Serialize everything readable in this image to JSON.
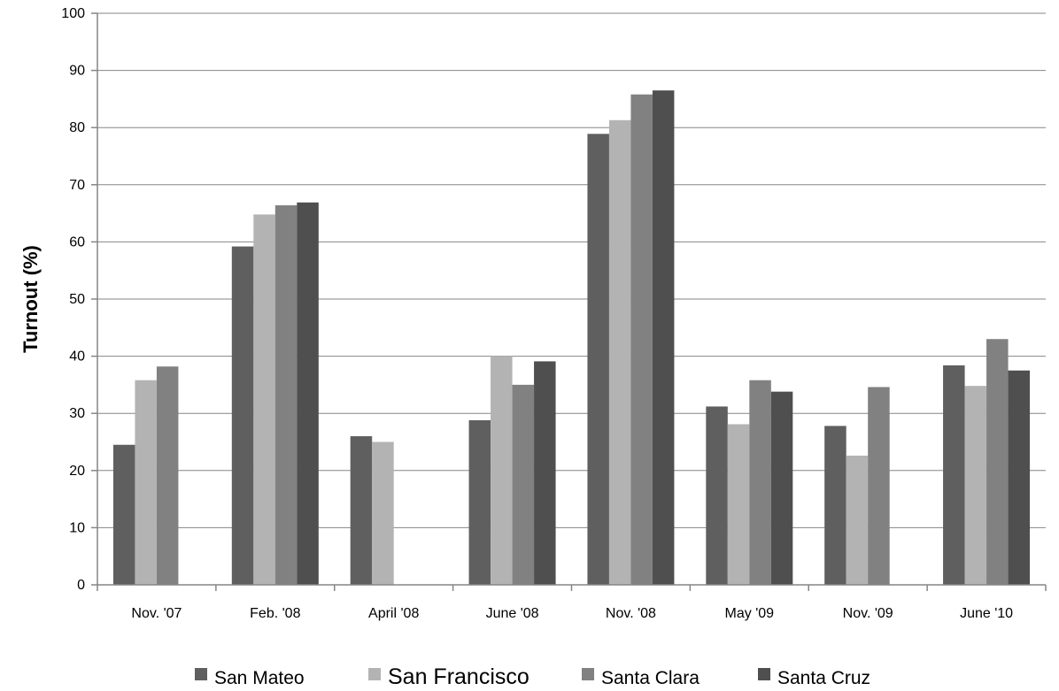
{
  "chart_data": {
    "type": "bar",
    "title": "",
    "xlabel": "",
    "ylabel": "Turnout (%)",
    "ylim": [
      0,
      100
    ],
    "yticks": [
      0,
      10,
      20,
      30,
      40,
      50,
      60,
      70,
      80,
      90,
      100
    ],
    "grid": true,
    "legend_position": "bottom",
    "categories": [
      "Nov. '07",
      "Feb. '08",
      "April '08",
      "June '08",
      "Nov. '08",
      "May '09",
      "Nov. '09",
      "June '10"
    ],
    "series": [
      {
        "name": "San Mateo",
        "color": "#5f5f5f",
        "values": [
          24.5,
          59.2,
          26.0,
          28.8,
          78.9,
          31.2,
          27.8,
          38.4
        ]
      },
      {
        "name": "San Francisco",
        "color": "#b3b3b3",
        "values": [
          35.8,
          64.8,
          25.0,
          40.0,
          81.3,
          28.1,
          22.6,
          34.8
        ]
      },
      {
        "name": "Santa Clara",
        "color": "#818181",
        "values": [
          38.2,
          66.4,
          null,
          35.0,
          85.8,
          35.8,
          34.6,
          43.0
        ]
      },
      {
        "name": "Santa Cruz",
        "color": "#4f4f4f",
        "values": [
          null,
          66.9,
          null,
          39.1,
          86.5,
          33.8,
          null,
          37.5
        ]
      }
    ]
  }
}
